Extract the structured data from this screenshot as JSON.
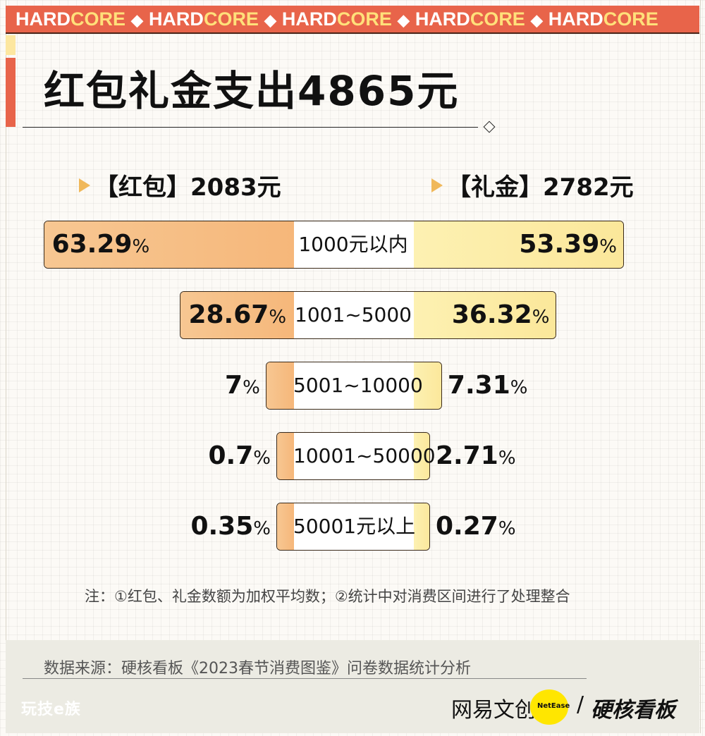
{
  "banner": {
    "words": [
      {
        "a": "HARD",
        "b": "CORE"
      },
      {
        "a": "HARD",
        "b": "CORE"
      },
      {
        "a": "HARD",
        "b": "CORE"
      },
      {
        "a": "HARD",
        "b": "CORE"
      },
      {
        "a": "HARD",
        "b": "CORE"
      }
    ],
    "separator": "◆"
  },
  "title": "红包礼金支出4865元",
  "chart_data": {
    "type": "bar",
    "title": "红包礼金支出4865元",
    "categories": [
      "1000元以内",
      "1001~5000",
      "5001~10000",
      "10001~50000",
      "50001元以上"
    ],
    "series": [
      {
        "name": "【红包】2083元",
        "values": [
          63.29,
          28.67,
          7,
          0.7,
          0.35
        ],
        "color": "#f6b77a"
      },
      {
        "name": "【礼金】2782元",
        "values": [
          53.39,
          36.32,
          7.31,
          2.71,
          0.27
        ],
        "color": "#fbe79a"
      }
    ],
    "value_labels": {
      "left": [
        "63.29",
        "28.67",
        "7",
        "0.7",
        "0.35"
      ],
      "right": [
        "53.39",
        "36.32",
        "7.31",
        "2.71",
        "0.27"
      ]
    },
    "unit": "%"
  },
  "legend": {
    "left": "【红包】2083元",
    "right": "【礼金】2782元"
  },
  "note": "注：①红包、礼金数额为加权平均数；②统计中对消费区间进行了处理整合",
  "source": "数据来源：硬核看板《2023春节消费图鉴》问卷数据统计分析",
  "brand": {
    "left": "玩技e族",
    "wy": "网易文创",
    "netease": "NetEase",
    "slash": "/",
    "hardcore": "硬核看板"
  }
}
